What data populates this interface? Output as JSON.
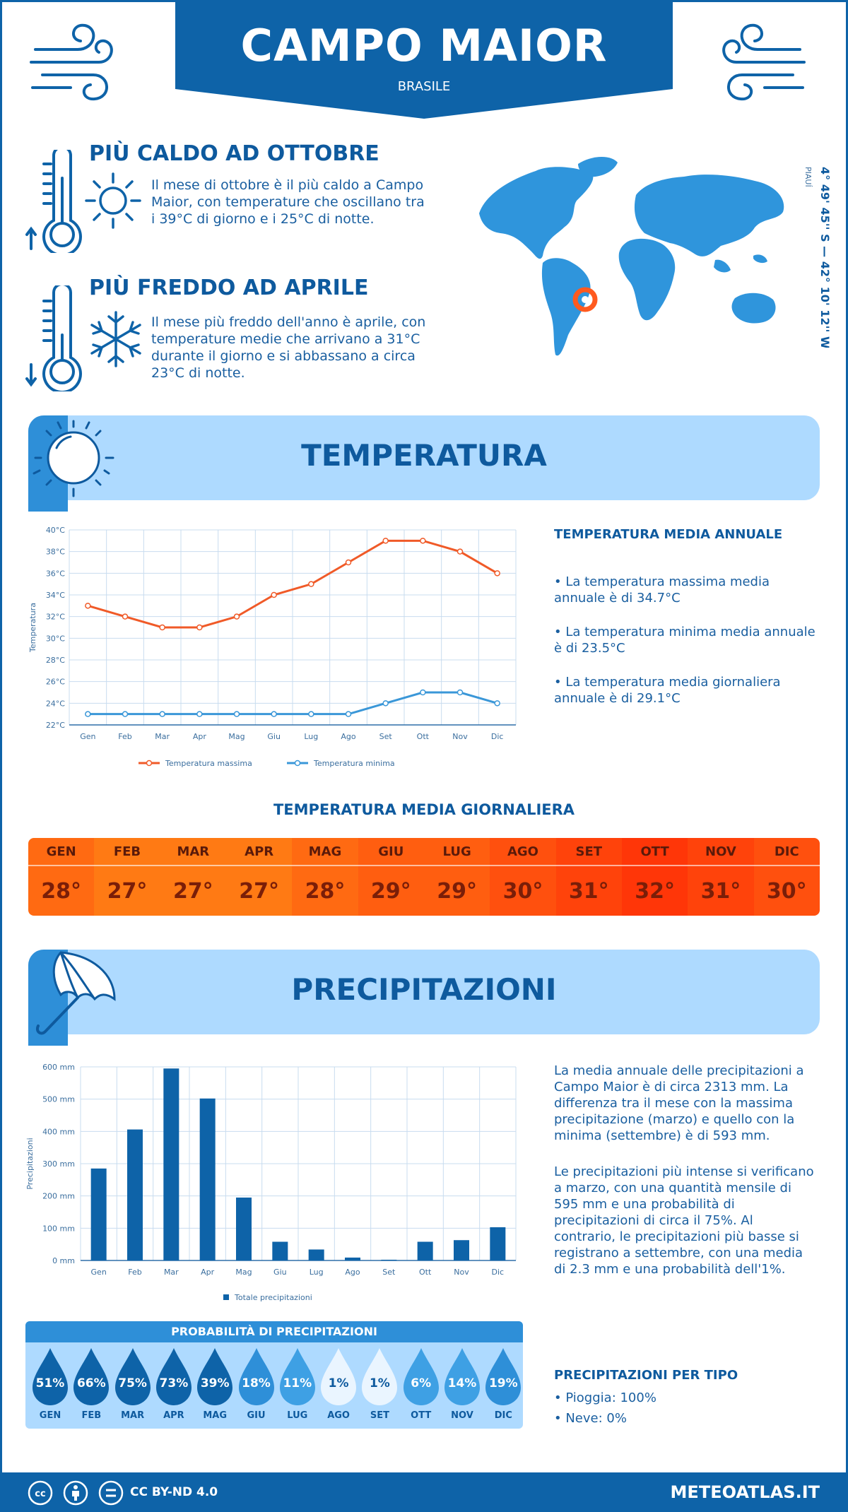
{
  "header": {
    "city": "CAMPO MAIOR",
    "country": "BRASILE"
  },
  "coords": {
    "region": "PIAUÍ",
    "text": "4° 49' 45'' S — 42° 10' 12'' W"
  },
  "hottest": {
    "title": "PIÙ CALDO AD OTTOBRE",
    "text": "Il mese di ottobre è il più caldo a Campo Maior, con temperature che oscillano tra i 39°C di giorno e i 25°C di notte."
  },
  "coldest": {
    "title": "PIÙ FREDDO AD APRILE",
    "text": "Il mese più freddo dell'anno è aprile, con temperature medie che arrivano a 31°C durante il giorno e si abbassano a circa 23°C di notte."
  },
  "temperature_section": {
    "title": "TEMPERATURA",
    "annual_title": "TEMPERATURA MEDIA ANNUALE",
    "bullets": [
      "• La temperatura massima media annuale è di 34.7°C",
      "• La temperatura minima media annuale è di 23.5°C",
      "• La temperatura media giornaliera annuale è di 29.1°C"
    ],
    "daily_title": "TEMPERATURA MEDIA GIORNALIERA",
    "daily": [
      {
        "month": "GEN",
        "value": "28°",
        "color": "#ff6a12"
      },
      {
        "month": "FEB",
        "value": "27°",
        "color": "#ff7a14"
      },
      {
        "month": "MAR",
        "value": "27°",
        "color": "#ff7a14"
      },
      {
        "month": "APR",
        "value": "27°",
        "color": "#ff7a14"
      },
      {
        "month": "MAG",
        "value": "28°",
        "color": "#ff6a12"
      },
      {
        "month": "GIU",
        "value": "29°",
        "color": "#ff5e10"
      },
      {
        "month": "LUG",
        "value": "29°",
        "color": "#ff5e10"
      },
      {
        "month": "AGO",
        "value": "30°",
        "color": "#ff500e"
      },
      {
        "month": "SET",
        "value": "31°",
        "color": "#ff430b"
      },
      {
        "month": "OTT",
        "value": "32°",
        "color": "#ff3608"
      },
      {
        "month": "NOV",
        "value": "31°",
        "color": "#ff430b"
      },
      {
        "month": "DIC",
        "value": "30°",
        "color": "#ff500e"
      }
    ]
  },
  "precip_section": {
    "title": "PRECIPITAZIONI",
    "text1": "La media annuale delle precipitazioni a Campo Maior è di circa 2313 mm. La differenza tra il mese con la massima precipitazione (marzo) e quello con la minima (settembre) è di 593 mm.",
    "text2": "Le precipitazioni più intense si verificano a marzo, con una quantità mensile di 595 mm e una probabilità di precipitazioni di circa il 75%. Al contrario, le precipitazioni più basse si registrano a settembre, con una media di 2.3 mm e una probabilità dell'1%.",
    "prob_title": "PROBABILITÀ DI PRECIPITAZIONI",
    "probabilities": [
      {
        "month": "GEN",
        "value": "51%",
        "color": "#0e63a8"
      },
      {
        "month": "FEB",
        "value": "66%",
        "color": "#0e63a8"
      },
      {
        "month": "MAR",
        "value": "75%",
        "color": "#0e63a8"
      },
      {
        "month": "APR",
        "value": "73%",
        "color": "#0e63a8"
      },
      {
        "month": "MAG",
        "value": "39%",
        "color": "#0e63a8"
      },
      {
        "month": "GIU",
        "value": "18%",
        "color": "#2e8fd8"
      },
      {
        "month": "LUG",
        "value": "11%",
        "color": "#3ea0e4"
      },
      {
        "month": "AGO",
        "value": "1%",
        "color": "#eaf5ff"
      },
      {
        "month": "SET",
        "value": "1%",
        "color": "#eaf5ff"
      },
      {
        "month": "OTT",
        "value": "6%",
        "color": "#3ea0e4"
      },
      {
        "month": "NOV",
        "value": "14%",
        "color": "#3ea0e4"
      },
      {
        "month": "DIC",
        "value": "19%",
        "color": "#2e8fd8"
      }
    ],
    "type_title": "PRECIPITAZIONI PER TIPO",
    "types": [
      "• Pioggia: 100%",
      "• Neve: 0%"
    ]
  },
  "footer": {
    "license": "CC BY-ND 4.0",
    "site": "METEOATLAS.IT"
  },
  "chart_data": [
    {
      "type": "line",
      "categories": [
        "Gen",
        "Feb",
        "Mar",
        "Apr",
        "Mag",
        "Giu",
        "Lug",
        "Ago",
        "Set",
        "Ott",
        "Nov",
        "Dic"
      ],
      "series": [
        {
          "name": "Temperatura massima",
          "values": [
            33,
            32,
            31,
            31,
            32,
            34,
            35,
            37,
            39,
            39,
            38,
            36
          ],
          "color": "#f05a28"
        },
        {
          "name": "Temperatura minima",
          "values": [
            23,
            23,
            23,
            23,
            23,
            23,
            23,
            23,
            24,
            25,
            25,
            24
          ],
          "color": "#3a97d8"
        }
      ],
      "ylabel": "Temperatura",
      "ylim": [
        22,
        40
      ],
      "yticks": [
        "22°C",
        "24°C",
        "26°C",
        "28°C",
        "30°C",
        "32°C",
        "34°C",
        "36°C",
        "38°C",
        "40°C"
      ],
      "grid": true,
      "legend": "bottom"
    },
    {
      "type": "bar",
      "categories": [
        "Gen",
        "Feb",
        "Mar",
        "Apr",
        "Mag",
        "Giu",
        "Lug",
        "Ago",
        "Set",
        "Ott",
        "Nov",
        "Dic"
      ],
      "series": [
        {
          "name": "Totale precipitazioni",
          "values": [
            285,
            406,
            595,
            502,
            195,
            58,
            34,
            9,
            2.3,
            58,
            63,
            103
          ],
          "color": "#0e63a8"
        }
      ],
      "ylabel": "Precipitazioni",
      "ylim": [
        0,
        600
      ],
      "yticks": [
        "0 mm",
        "100 mm",
        "200 mm",
        "300 mm",
        "400 mm",
        "500 mm",
        "600 mm"
      ],
      "grid": true,
      "legend": "bottom"
    }
  ]
}
